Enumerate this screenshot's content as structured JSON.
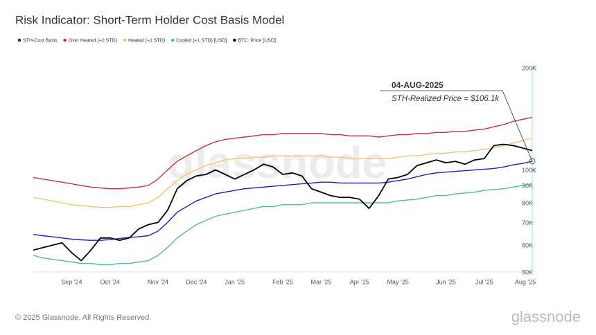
{
  "chart_data": {
    "type": "line",
    "title": "Risk Indicator: Short-Term Holder Cost Basis Model",
    "categories": [
      null,
      null,
      null,
      null,
      "Sep '24",
      null,
      null,
      null,
      "Oct '24",
      null,
      null,
      null,
      null,
      "Nov '24",
      null,
      null,
      null,
      "Dec '24",
      null,
      null,
      null,
      "Jan '25",
      null,
      null,
      null,
      null,
      "Feb '25",
      null,
      null,
      null,
      "Mar '25",
      null,
      null,
      null,
      "Apr '25",
      null,
      null,
      null,
      "May '25",
      null,
      null,
      null,
      null,
      "Jun '25",
      null,
      null,
      null,
      "Jul '25",
      null,
      null,
      null,
      null,
      "Aug '25"
    ],
    "series": [
      {
        "name": "STH-Cost Basis",
        "color": "#1a1fc4",
        "values": [
          64.5,
          64,
          63.5,
          63,
          62.5,
          62.2,
          62,
          62,
          62.3,
          62.8,
          63.2,
          63.5,
          64,
          66,
          70,
          75,
          78,
          81,
          83,
          85,
          86,
          87,
          88,
          88.5,
          89,
          89.5,
          90,
          90.5,
          91,
          91.5,
          92,
          92,
          91.5,
          91.5,
          91.5,
          91.5,
          91.5,
          92,
          93,
          94,
          95.5,
          97,
          98,
          98.5,
          99,
          99.5,
          100,
          100.5,
          101,
          102,
          103.5,
          104.5,
          106.1
        ]
      },
      {
        "name": "Over Heated (+2 STD)",
        "color": "#c8323c",
        "values": [
          95,
          94,
          93,
          92,
          91,
          90,
          89,
          88.5,
          88,
          88,
          88.5,
          89,
          90,
          94,
          100,
          106,
          110,
          114,
          118,
          121,
          123,
          124,
          125,
          126,
          127,
          127,
          128,
          128,
          128,
          128,
          128,
          127,
          127,
          126,
          126,
          126,
          125,
          126,
          127,
          127,
          128,
          128,
          129,
          129,
          130,
          130,
          131,
          132,
          134,
          136,
          139,
          141,
          143
        ]
      },
      {
        "name": "Heated (+1 STD)",
        "color": "#f5c36b",
        "values": [
          83,
          82,
          81,
          80,
          79,
          78.5,
          78,
          77.5,
          77.5,
          78,
          78,
          79,
          80,
          83,
          88,
          93,
          97,
          100,
          103,
          105,
          107,
          108,
          108,
          109,
          109,
          110,
          110,
          110,
          110,
          110,
          110,
          109,
          109,
          108,
          108,
          108,
          108,
          108,
          109,
          110,
          110,
          111,
          112,
          112,
          113,
          113,
          114,
          115,
          116,
          118,
          120,
          122,
          124
        ]
      },
      {
        "name": "Cooled (+1 STD) [USD]",
        "color": "#4fb8a8",
        "values": [
          56,
          55,
          54.5,
          54,
          53.5,
          53,
          53,
          52.5,
          52.5,
          53,
          53,
          53.5,
          54,
          56,
          59,
          63,
          66,
          69,
          71,
          73,
          74,
          75,
          76,
          77,
          78,
          78,
          79,
          79,
          79,
          80,
          80,
          80,
          80,
          80,
          80,
          80,
          80,
          80,
          81,
          81.5,
          82,
          83,
          84,
          84,
          85,
          85.5,
          86,
          87,
          87.5,
          88,
          89,
          90,
          91
        ]
      },
      {
        "name": "BTC: Price [USD]",
        "color": "#000000",
        "values": [
          58,
          59,
          60,
          61,
          57,
          54,
          58,
          63,
          63,
          62,
          63,
          67,
          69,
          70,
          76,
          88,
          93,
          96,
          97,
          100,
          97,
          94,
          97,
          100,
          104,
          102,
          97,
          98,
          96,
          88,
          86,
          84,
          83,
          83,
          82,
          77,
          84,
          94,
          95,
          97,
          103,
          105,
          107,
          105,
          106,
          104,
          107,
          108,
          118,
          119,
          118,
          116,
          114
        ]
      }
    ],
    "ylim": [
      50,
      200
    ],
    "log_scale": true,
    "yticks": [
      {
        "value": 50,
        "label": "50K"
      },
      {
        "value": 60,
        "label": "60K"
      },
      {
        "value": 70,
        "label": "70K"
      },
      {
        "value": 80,
        "label": "80K"
      },
      {
        "value": 90,
        "label": "90K"
      },
      {
        "value": 100,
        "label": "100K"
      },
      {
        "value": 200,
        "label": "200K"
      }
    ],
    "annotation": {
      "date": "04-AUG-2025",
      "text": "STH-Realized Price = $106.1k"
    }
  },
  "footer": "© 2025 Glassnode. All Rights Reserved.",
  "brand": "glassnode"
}
